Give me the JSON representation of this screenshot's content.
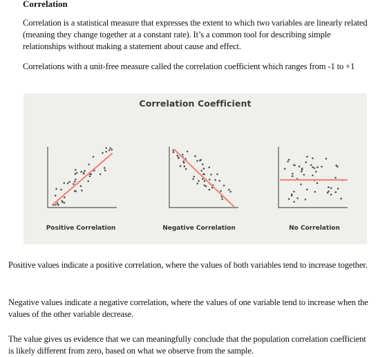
{
  "document": {
    "heading": "Correlation",
    "intro": [
      "Correlation is a statistical measure that expresses the extent to which two variables are linearly related (meaning they change together at a constant rate). It’s a common tool for describing simple relationships without making a statement about cause and effect.",
      "Correlations with a unit-free measure called the correlation coefficient which ranges from -1 to +1"
    ],
    "paragraphs": [
      "Positive values indicate a positive correlation, where the values of both variables tend to increase together.",
      "Negative values indicate a negative correlation, where the values of one variable tend to increase when the values of the other variable decrease.",
      "The value gives us evidence that we can meaningfully conclude that the population correlation coefficient is likely different from zero, based on what we observe from the sample."
    ]
  },
  "figure": {
    "title": "Correlation Coefficient",
    "colors": {
      "background": "#efefeb",
      "axis": "#555555",
      "dot": "#555555",
      "trend": "#ef8a80"
    },
    "panels": [
      {
        "label": "Positive Correlation",
        "trend": "positive"
      },
      {
        "label": "Negative Correlation",
        "trend": "negative"
      },
      {
        "label": "No Correlation",
        "trend": "none"
      }
    ]
  }
}
